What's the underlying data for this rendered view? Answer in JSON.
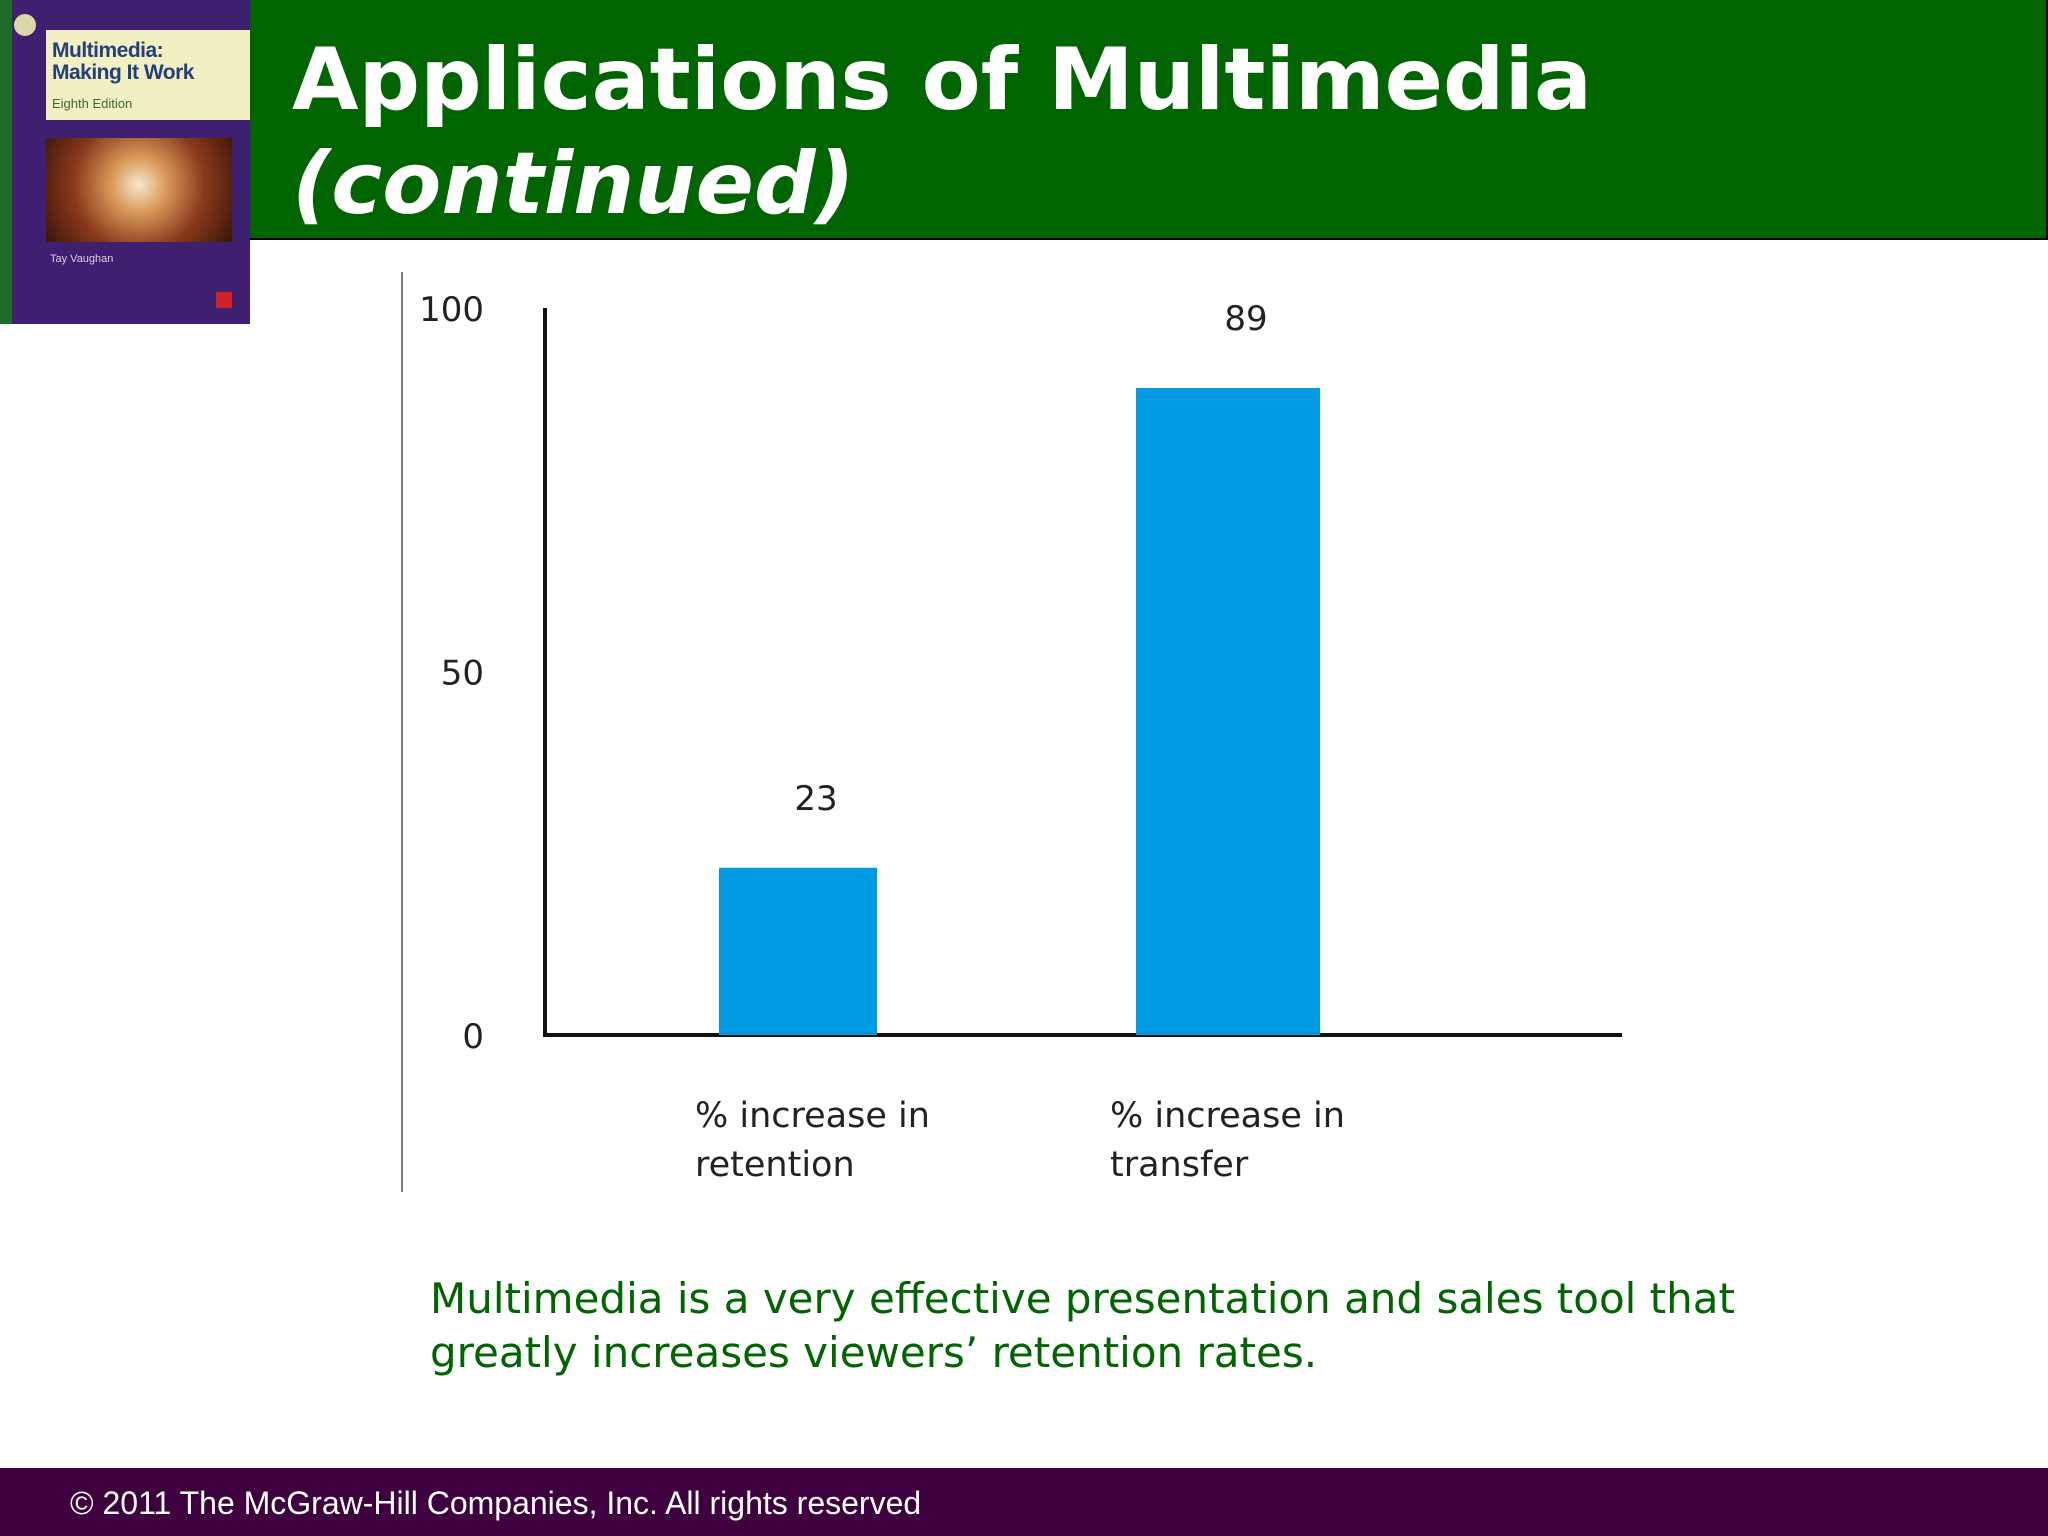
{
  "header": {
    "title": "Applications of Multimedia",
    "subtitle": "(continued)",
    "background": "#006400"
  },
  "book": {
    "title_line1": "Multimedia:",
    "title_line2": "Making It Work",
    "edition": "Eighth Edition",
    "author": "Tay Vaughan"
  },
  "chart_data": {
    "type": "bar",
    "categories": [
      "% increase in retention",
      "% increase in transfer"
    ],
    "category_lines": [
      [
        "% increase in",
        "retention"
      ],
      [
        "% increase in",
        "transfer"
      ]
    ],
    "values": [
      23,
      89
    ],
    "data_labels": [
      "23",
      "89"
    ],
    "title": "",
    "xlabel": "",
    "ylabel": "",
    "ylim": [
      0,
      100
    ],
    "yticks": [
      0,
      50,
      100
    ],
    "ytick_labels": [
      "0",
      "50",
      "100"
    ],
    "bar_color": "#009be3",
    "grid": false,
    "legend": "none"
  },
  "caption": {
    "text": "Multimedia is a very effective presentation and sales tool that greatly increases viewers’ retention rates.",
    "color": "#006400"
  },
  "footer": {
    "copyright": "© 2011 The McGraw-Hill Companies, Inc. All rights reserved",
    "background": "#3f003f"
  }
}
